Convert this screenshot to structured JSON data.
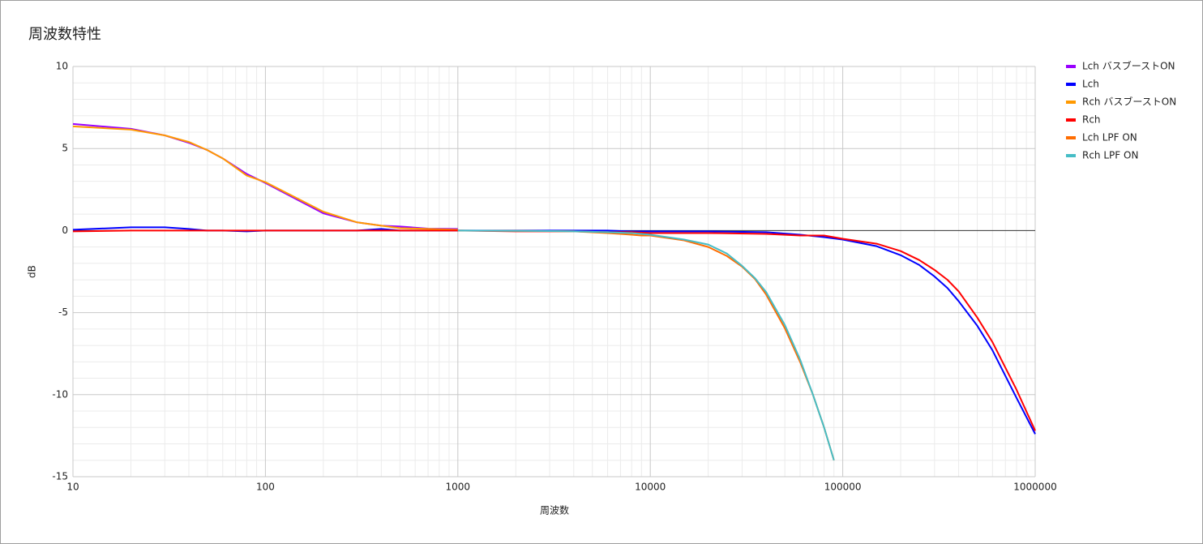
{
  "chart_data": {
    "type": "line",
    "title": "周波数特性",
    "x_label": "周波数",
    "y_label": "dB",
    "xlog": true,
    "grid": true,
    "legend": "right",
    "xlim": [
      10,
      1000000
    ],
    "xticks": [
      10,
      100,
      1000,
      10000,
      100000,
      1000000
    ],
    "ylim": [
      -15,
      10
    ],
    "yticks": [
      -15,
      -10,
      -5,
      0,
      5,
      10
    ],
    "series": [
      {
        "name": "Lch バスブーストON",
        "color": "#9900ff",
        "x": [
          10,
          20,
          30,
          40,
          50,
          60,
          80,
          100,
          200,
          300,
          400,
          500,
          700,
          1000
        ],
        "values": [
          6.5,
          6.2,
          5.8,
          5.35,
          4.9,
          4.4,
          3.45,
          2.9,
          1.05,
          0.5,
          0.3,
          0.25,
          0.12,
          0.1
        ]
      },
      {
        "name": "Lch",
        "color": "#0000ff",
        "x": [
          10,
          20,
          30,
          40,
          50,
          60,
          80,
          100,
          200,
          300,
          400,
          500,
          700,
          1000,
          2000,
          4000,
          6000,
          8000,
          10000,
          20000,
          40000,
          60000,
          80000,
          100000,
          150000,
          200000,
          250000,
          300000,
          350000,
          400000,
          500000,
          600000,
          800000,
          1000000
        ],
        "values": [
          0.05,
          0.2,
          0.2,
          0.1,
          0,
          0,
          -0.05,
          0,
          0,
          0,
          0.1,
          0,
          0,
          0,
          0,
          0,
          0,
          -0.05,
          -0.05,
          -0.05,
          -0.1,
          -0.25,
          -0.4,
          -0.55,
          -0.95,
          -1.5,
          -2.1,
          -2.8,
          -3.5,
          -4.3,
          -5.8,
          -7.3,
          -10.2,
          -12.4
        ]
      },
      {
        "name": "Rch バスブーストON",
        "color": "#ff9900",
        "x": [
          10,
          20,
          30,
          40,
          50,
          60,
          80,
          100,
          200,
          300,
          400,
          500,
          700,
          1000
        ],
        "values": [
          6.35,
          6.15,
          5.8,
          5.4,
          4.9,
          4.4,
          3.35,
          2.95,
          1.15,
          0.5,
          0.3,
          0.15,
          0.1,
          0.05
        ]
      },
      {
        "name": "Rch",
        "color": "#ff0000",
        "x": [
          10,
          20,
          30,
          40,
          50,
          60,
          80,
          100,
          200,
          300,
          400,
          500,
          700,
          1000,
          2000,
          4000,
          6000,
          8000,
          10000,
          20000,
          40000,
          60000,
          80000,
          100000,
          150000,
          200000,
          250000,
          300000,
          350000,
          400000,
          500000,
          600000,
          800000,
          1000000
        ],
        "values": [
          -0.05,
          0,
          0,
          0,
          0,
          0,
          0,
          0,
          0,
          0,
          0,
          0,
          0,
          0,
          -0.05,
          -0.05,
          -0.1,
          -0.1,
          -0.15,
          -0.15,
          -0.2,
          -0.3,
          -0.3,
          -0.5,
          -0.8,
          -1.25,
          -1.8,
          -2.4,
          -3.0,
          -3.7,
          -5.3,
          -6.8,
          -9.7,
          -12.2
        ]
      },
      {
        "name": "Lch LPF ON",
        "color": "#ff6d01",
        "x": [
          1000,
          2000,
          3000,
          4000,
          6000,
          8000,
          9000,
          10000,
          15000,
          20000,
          25000,
          30000,
          35000,
          40000,
          50000,
          60000,
          70000,
          80000,
          90000
        ],
        "values": [
          0,
          -0.02,
          -0.03,
          -0.05,
          -0.15,
          -0.25,
          -0.3,
          -0.3,
          -0.6,
          -1.0,
          -1.55,
          -2.2,
          -2.95,
          -3.9,
          -5.95,
          -8.0,
          -10.0,
          -12.0,
          -14.0
        ]
      },
      {
        "name": "Rch LPF ON",
        "color": "#46bdc6",
        "x": [
          1000,
          2000,
          3000,
          4000,
          6000,
          8000,
          9000,
          10000,
          15000,
          20000,
          25000,
          30000,
          35000,
          40000,
          50000,
          60000,
          70000,
          80000,
          90000
        ],
        "values": [
          0,
          -0.02,
          -0.03,
          -0.05,
          -0.1,
          -0.15,
          -0.2,
          -0.25,
          -0.55,
          -0.85,
          -1.4,
          -2.15,
          -2.9,
          -3.75,
          -5.75,
          -7.85,
          -10.0,
          -12.0,
          -14.0
        ]
      }
    ]
  }
}
